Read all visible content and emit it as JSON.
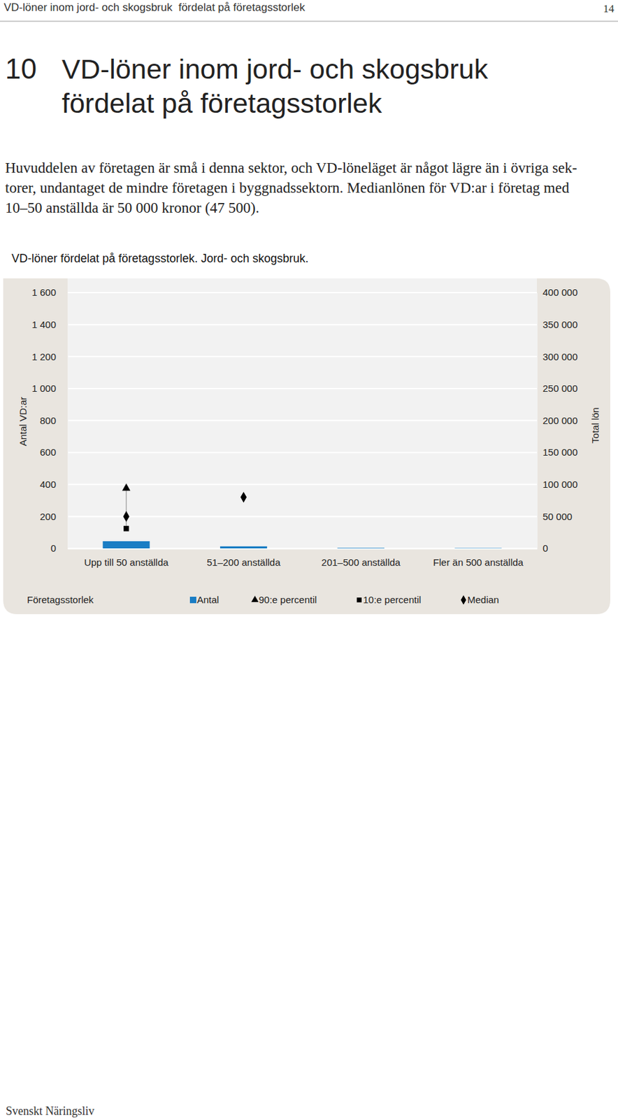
{
  "header": {
    "running_title": "VD-löner inom jord- och skogsbruk  fördelat på företagsstorlek",
    "page": 14
  },
  "section": {
    "number": 10,
    "title_lines": [
      "VD-löner inom jord- och skogsbruk",
      "fördelat på företagsstorlek"
    ],
    "paragraph_lines": [
      "Huvuddelen av företagen är små i denna sektor, och VD-löneläget är något lägre än i övriga sek-",
      "torer, undantaget de mindre företagen i byggnadssektorn. Medianlönen för VD:ar i företag med",
      "10–50 anställda är 50 000 kronor (47 500)."
    ]
  },
  "chart_data": {
    "type": "bar",
    "title": "VD-löner fördelat på företagsstorlek. Jord- och skogsbruk.",
    "x_label": "Företagsstorlek",
    "y_label": "Antal VD:ar",
    "y2_label": "Total lön",
    "categories": [
      "Upp till 50 anställda",
      "51–200 anställda",
      "201–500 anställda",
      "Fler än 500 anställda"
    ],
    "series": [
      {
        "name": "Antal",
        "type": "bar",
        "color": "#1a7dc4",
        "values": [
          45,
          13,
          3,
          2
        ]
      },
      {
        "name": "90:e percentil",
        "type": "scatter",
        "marker": "triangle",
        "color": "#000000",
        "axis": "y2",
        "values": [
          94000,
          null,
          null,
          null
        ]
      },
      {
        "name": "10:e percentil",
        "type": "scatter",
        "marker": "square",
        "color": "#000000",
        "axis": "y2",
        "values": [
          31000,
          null,
          null,
          null
        ]
      },
      {
        "name": "Median",
        "type": "scatter",
        "marker": "diamond",
        "color": "#000000",
        "axis": "y2",
        "values": [
          50000,
          80000,
          null,
          null
        ]
      }
    ],
    "ylim": [
      0,
      1600
    ],
    "yticks": [
      0,
      200,
      400,
      600,
      800,
      {
        "value": 1000,
        "label": "1 000"
      },
      {
        "value": 1200,
        "label": "1 200"
      },
      {
        "value": 1400,
        "label": "1 400"
      },
      {
        "value": 1600,
        "label": "1 600"
      }
    ],
    "y2lim": [
      0,
      400000
    ],
    "y2ticks": [
      0,
      {
        "value": 50000,
        "label": "50 000"
      },
      {
        "value": 100000,
        "label": "100 000"
      },
      {
        "value": 150000,
        "label": "150 000"
      },
      {
        "value": 200000,
        "label": "200 000"
      },
      {
        "value": 250000,
        "label": "250 000"
      },
      {
        "value": 300000,
        "label": "300 000"
      },
      {
        "value": 350000,
        "label": "350 000"
      },
      {
        "value": 400000,
        "label": "400 000"
      }
    ],
    "grid": true,
    "legend": "bottom"
  },
  "footer": {
    "text": "Svenskt Näringsliv"
  }
}
